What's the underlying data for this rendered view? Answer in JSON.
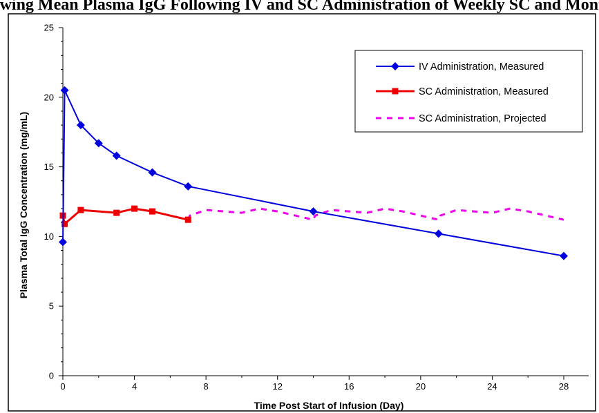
{
  "chart_data": {
    "type": "line",
    "title": "Showing Mean Plasma IgG Following IV and SC Administration of Weekly SC and Monthly IV Infusions",
    "xlabel": "Time Post Start of Infusion (Day)",
    "ylabel": "Plasma Total IgG Concentration (mg/mL)",
    "xlim": [
      0,
      30
    ],
    "ylim": [
      0,
      25
    ],
    "xticks": [
      0,
      4,
      8,
      12,
      16,
      20,
      24,
      28
    ],
    "yticks": [
      0,
      5,
      10,
      15,
      20,
      25
    ],
    "grid": false,
    "legend_position": "top-right",
    "series": [
      {
        "name": "IV Administration, Measured",
        "color": "#0000dd",
        "marker": "diamond",
        "style": "solid",
        "x": [
          0,
          0.1,
          1,
          2,
          3,
          5,
          7,
          14,
          21,
          28
        ],
        "y": [
          9.6,
          20.5,
          18.0,
          16.7,
          15.8,
          14.6,
          13.6,
          11.8,
          10.2,
          8.6
        ]
      },
      {
        "name": "SC Administration, Measured",
        "color": "#ee0000",
        "marker": "square",
        "style": "solid",
        "x": [
          0,
          0.1,
          1,
          3,
          4,
          5,
          7
        ],
        "y": [
          11.5,
          10.9,
          11.9,
          11.7,
          12.0,
          11.8,
          11.2
        ]
      },
      {
        "name": "SC Administration, Projected",
        "color": "#ee00ee",
        "marker": "none",
        "style": "dashed",
        "x": [
          7,
          7.1,
          8,
          10,
          11,
          12,
          14,
          14.1,
          15,
          17,
          18,
          19,
          21,
          21.1,
          22,
          24,
          25,
          26,
          28
        ],
        "y": [
          11.2,
          11.5,
          11.9,
          11.7,
          12.0,
          11.8,
          11.2,
          11.5,
          11.9,
          11.7,
          12.0,
          11.8,
          11.2,
          11.5,
          11.9,
          11.7,
          12.0,
          11.8,
          11.2
        ]
      }
    ]
  }
}
